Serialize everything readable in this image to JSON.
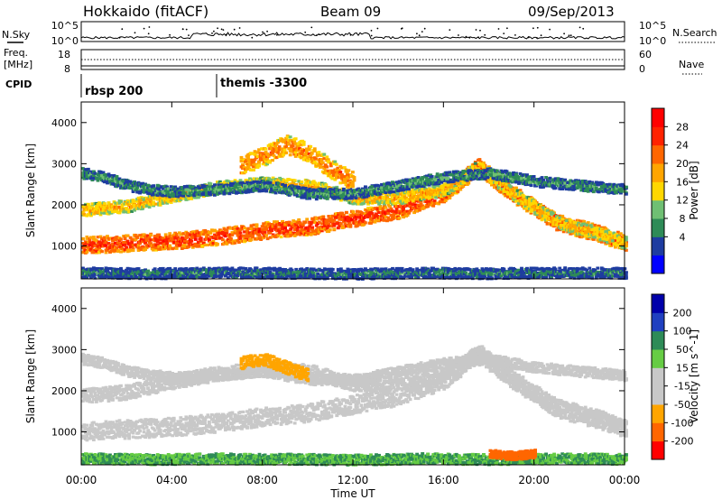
{
  "header": {
    "title": "Hokkaido (fitACF)",
    "beam": "Beam 09",
    "date": "09/Sep/2013"
  },
  "top_panels": {
    "nsky_label": "N.Sky",
    "nsky_ticks": [
      "10^5",
      "10^0"
    ],
    "nsky_right_ticks": [
      "10^5",
      "10^0"
    ],
    "nsearch_label": "N.Search",
    "freq_label_line1": "Freq.",
    "freq_label_line2": "[MHz]",
    "freq_ticks": [
      "18",
      "8"
    ],
    "nave_ticks": [
      "60",
      "0"
    ],
    "nave_label": "Nave",
    "cpid_label": "CPID",
    "cpid_segments": [
      {
        "label": "rbsp 200",
        "start_hour": 0
      },
      {
        "label": "themis -3300",
        "start_hour": 6
      }
    ]
  },
  "colors": {
    "power_scale": [
      "#0000ff",
      "#1e3ca0",
      "#2e8b57",
      "#6fbf73",
      "#ffd700",
      "#ffa500",
      "#ff6600",
      "#ff2200",
      "#ff0000"
    ],
    "velocity_scale": [
      "#0000aa",
      "#2040c0",
      "#2e8b57",
      "#66cc44",
      "#c8c8c8",
      "#c8c8c8",
      "#ffa500",
      "#ff6600",
      "#ff0000"
    ],
    "ground_scatter": "#c0c0c0"
  },
  "chart_data": [
    {
      "type": "heatmap",
      "name": "power",
      "ylabel": "Slant Range [km]",
      "ylim": [
        200,
        4500
      ],
      "xlim": [
        0,
        24
      ],
      "y_ticks": [
        1000,
        2000,
        3000,
        4000
      ],
      "colorbar_label": "Power [dB]",
      "colorbar_ticks": [
        "28",
        "24",
        "20",
        "16",
        "12",
        "8",
        "4"
      ],
      "bands": [
        {
          "x": [
            0,
            2,
            4,
            6,
            8,
            10,
            12,
            14,
            16,
            17.5,
            19,
            21,
            23,
            24
          ],
          "y": [
            1050,
            1100,
            1150,
            1250,
            1400,
            1500,
            1700,
            1900,
            2300,
            2950,
            2300,
            1600,
            1300,
            1100
          ],
          "width": 400,
          "level": 26
        },
        {
          "x": [
            0,
            2,
            4,
            6,
            8,
            10,
            12,
            14,
            16,
            17.5,
            19,
            21,
            23,
            24
          ],
          "y": [
            1900,
            2000,
            2250,
            2450,
            2550,
            2500,
            2200,
            2200,
            2400,
            2950,
            2300,
            1600,
            1300,
            1100
          ],
          "width": 300,
          "level": 18
        },
        {
          "x": [
            0,
            1,
            2,
            3,
            4,
            6,
            8,
            10,
            12,
            14,
            16,
            18,
            20,
            22,
            24
          ],
          "y": [
            2800,
            2700,
            2500,
            2400,
            2350,
            2400,
            2500,
            2300,
            2300,
            2500,
            2700,
            2800,
            2600,
            2500,
            2400
          ],
          "width": 250,
          "level": 8
        },
        {
          "x": [
            7,
            8,
            9,
            10,
            11,
            12
          ],
          "y": [
            3000,
            3200,
            3500,
            3300,
            2900,
            2600
          ],
          "width": 450,
          "level": 22
        },
        {
          "x": [
            0,
            3,
            6,
            9,
            12,
            15,
            18,
            21,
            24
          ],
          "y": [
            380,
            360,
            380,
            370,
            350,
            380,
            360,
            380,
            370
          ],
          "width": 250,
          "level": 6
        }
      ]
    },
    {
      "type": "heatmap",
      "name": "velocity",
      "ylabel": "Slant Range [km]",
      "ylim": [
        200,
        4500
      ],
      "xlim": [
        0,
        24
      ],
      "y_ticks": [
        1000,
        2000,
        3000,
        4000
      ],
      "xlabel": "Time UT",
      "x_ticks": [
        "00:00",
        "04:00",
        "08:00",
        "12:00",
        "16:00",
        "20:00",
        "00:00"
      ],
      "colorbar_label": "Velocity [m s^-1]",
      "colorbar_ticks": [
        "200",
        "100",
        "50",
        "15",
        "-15",
        "-50",
        "-100",
        "-200"
      ],
      "bands": [
        {
          "x": [
            0,
            2,
            4,
            6,
            8,
            10,
            12,
            14,
            16,
            17.5,
            19,
            21,
            23,
            24
          ],
          "y": [
            1050,
            1100,
            1150,
            1250,
            1400,
            1500,
            1700,
            1900,
            2300,
            2950,
            2300,
            1600,
            1300,
            1100
          ],
          "width": 450,
          "level": 0
        },
        {
          "x": [
            0,
            2,
            4,
            6,
            8,
            10,
            12,
            14,
            16,
            17.5,
            19,
            21,
            23,
            24
          ],
          "y": [
            1900,
            2000,
            2250,
            2450,
            2550,
            2500,
            2200,
            2200,
            2400,
            2950,
            2300,
            1600,
            1300,
            1100
          ],
          "width": 350,
          "level": 0
        },
        {
          "x": [
            0,
            1,
            2,
            4,
            6,
            8,
            10,
            12,
            14,
            16,
            18,
            20,
            22,
            24
          ],
          "y": [
            2800,
            2700,
            2500,
            2350,
            2400,
            2500,
            2300,
            2300,
            2500,
            2700,
            2800,
            2600,
            2500,
            2400
          ],
          "width": 250,
          "level": 0
        },
        {
          "x": [
            7,
            8,
            9,
            10
          ],
          "y": [
            2700,
            2800,
            2600,
            2400
          ],
          "width": 300,
          "level": -40
        },
        {
          "x": [
            0,
            3,
            6,
            9,
            12,
            15,
            18,
            21,
            24
          ],
          "y": [
            380,
            360,
            380,
            370,
            350,
            380,
            360,
            380,
            370
          ],
          "width": 250,
          "level": 30
        },
        {
          "x": [
            18,
            19,
            20
          ],
          "y": [
            500,
            450,
            500
          ],
          "width": 200,
          "level": -60
        }
      ]
    }
  ]
}
